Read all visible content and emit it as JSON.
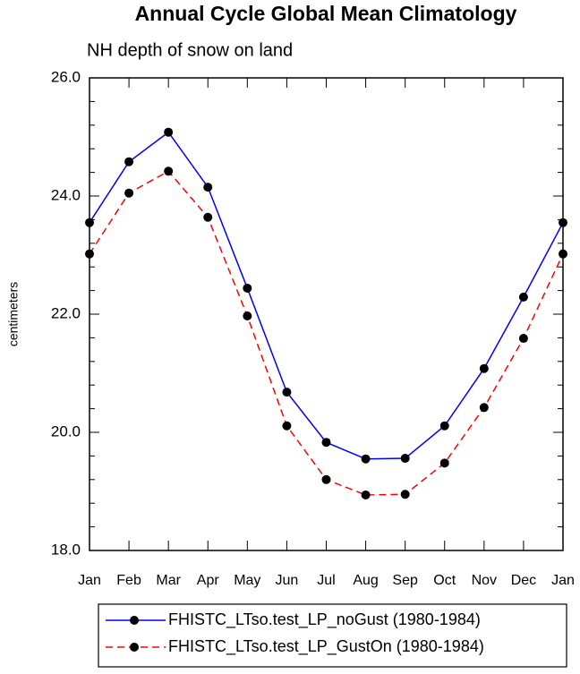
{
  "chart_data": {
    "type": "line",
    "title": "Annual Cycle Global Mean Climatology",
    "subtitle": "NH depth of snow on land",
    "y_label": "centimeters",
    "categories": [
      "Jan",
      "Feb",
      "Mar",
      "Apr",
      "May",
      "Jun",
      "Jul",
      "Aug",
      "Sep",
      "Oct",
      "Nov",
      "Dec",
      "Jan"
    ],
    "series": [
      {
        "name": "FHISTC_LTso.test_LP_noGust (1980-1984)",
        "color": "#0000ff",
        "dash": "solid",
        "values": [
          23.55,
          24.58,
          25.08,
          24.15,
          22.44,
          20.68,
          19.83,
          19.55,
          19.56,
          20.11,
          21.08,
          22.29,
          23.55
        ]
      },
      {
        "name": "FHISTC_LTso.test_LP_GustOn (1980-1984)",
        "color": "#ff0000",
        "dash": "dashed",
        "values": [
          23.02,
          24.05,
          24.42,
          23.64,
          21.97,
          20.11,
          19.2,
          18.94,
          18.95,
          19.48,
          20.42,
          21.59,
          23.02
        ]
      }
    ],
    "ylim": [
      18,
      26
    ],
    "yticks": [
      {
        "value": 18,
        "label": "18.0"
      },
      {
        "value": 20,
        "label": "20.0"
      },
      {
        "value": 22,
        "label": "22.0"
      },
      {
        "value": 24,
        "label": "24.0"
      },
      {
        "value": 26,
        "label": "26.0"
      }
    ],
    "yminorticks": [
      18.4,
      18.8,
      19.2,
      19.6,
      20.4,
      20.8,
      21.2,
      21.6,
      22.4,
      22.8,
      23.2,
      23.6,
      24.4,
      24.8,
      25.2,
      25.6
    ],
    "legend": "bottom"
  }
}
